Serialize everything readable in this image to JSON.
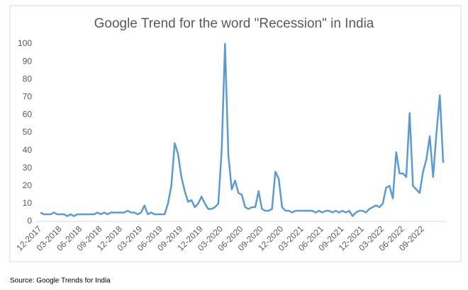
{
  "chart_data": {
    "type": "line",
    "title": "Google Trend for the word \"Recession\" in India",
    "source": "Source: Google Trends for India",
    "color": "#5b9bd5",
    "grid": false,
    "ylim": [
      0,
      100
    ],
    "yticks": [
      0,
      10,
      20,
      30,
      40,
      50,
      60,
      70,
      80,
      90,
      100
    ],
    "categories": [
      "12-2017",
      null,
      null,
      null,
      null,
      null,
      "03-2018",
      null,
      null,
      null,
      null,
      null,
      "06-2018",
      null,
      null,
      null,
      null,
      null,
      "09-2018",
      null,
      null,
      null,
      null,
      null,
      "12-2018",
      null,
      null,
      null,
      null,
      null,
      "03-2019",
      null,
      null,
      null,
      null,
      null,
      "06-2019",
      null,
      null,
      null,
      null,
      null,
      "09-2019",
      null,
      null,
      null,
      null,
      null,
      "12-2019",
      null,
      null,
      null,
      null,
      null,
      "03-2020",
      null,
      null,
      null,
      null,
      null,
      "06-2020",
      null,
      null,
      null,
      null,
      null,
      "09-2020",
      null,
      null,
      null,
      null,
      null,
      "12-2020",
      null,
      null,
      null,
      null,
      null,
      "03-2021",
      null,
      null,
      null,
      null,
      null,
      "06-2021",
      null,
      null,
      null,
      null,
      null,
      "09-2021",
      null,
      null,
      null,
      null,
      null,
      "12-2021",
      null,
      null,
      null,
      null,
      null,
      "03-2022",
      null,
      null,
      null,
      null,
      null,
      "06-2022",
      null,
      null,
      null,
      null,
      null,
      "09-2022",
      null,
      null,
      null,
      null,
      null,
      null
    ],
    "values": [
      5,
      4,
      4,
      4,
      5,
      4,
      4,
      4,
      3,
      4,
      3,
      4,
      4,
      4,
      4,
      4,
      4,
      5,
      4,
      5,
      4,
      5,
      5,
      5,
      5,
      5,
      6,
      5,
      5,
      4,
      5,
      9,
      4,
      5,
      4,
      4,
      4,
      4,
      10,
      20,
      44,
      38,
      25,
      17,
      11,
      12,
      8,
      10,
      14,
      10,
      7,
      7,
      8,
      10,
      40,
      100,
      37,
      18,
      23,
      16,
      15,
      8,
      7,
      8,
      8,
      17,
      7,
      6,
      6,
      7,
      28,
      24,
      8,
      6,
      6,
      5,
      6,
      6,
      6,
      6,
      6,
      6,
      5,
      6,
      5,
      6,
      6,
      5,
      6,
      5,
      6,
      5,
      6,
      3,
      5,
      6,
      6,
      5,
      7,
      8,
      9,
      8,
      10,
      19,
      20,
      13,
      39,
      27,
      27,
      25,
      61,
      20,
      18,
      16,
      28,
      35,
      48,
      25,
      50,
      71,
      33
    ]
  }
}
